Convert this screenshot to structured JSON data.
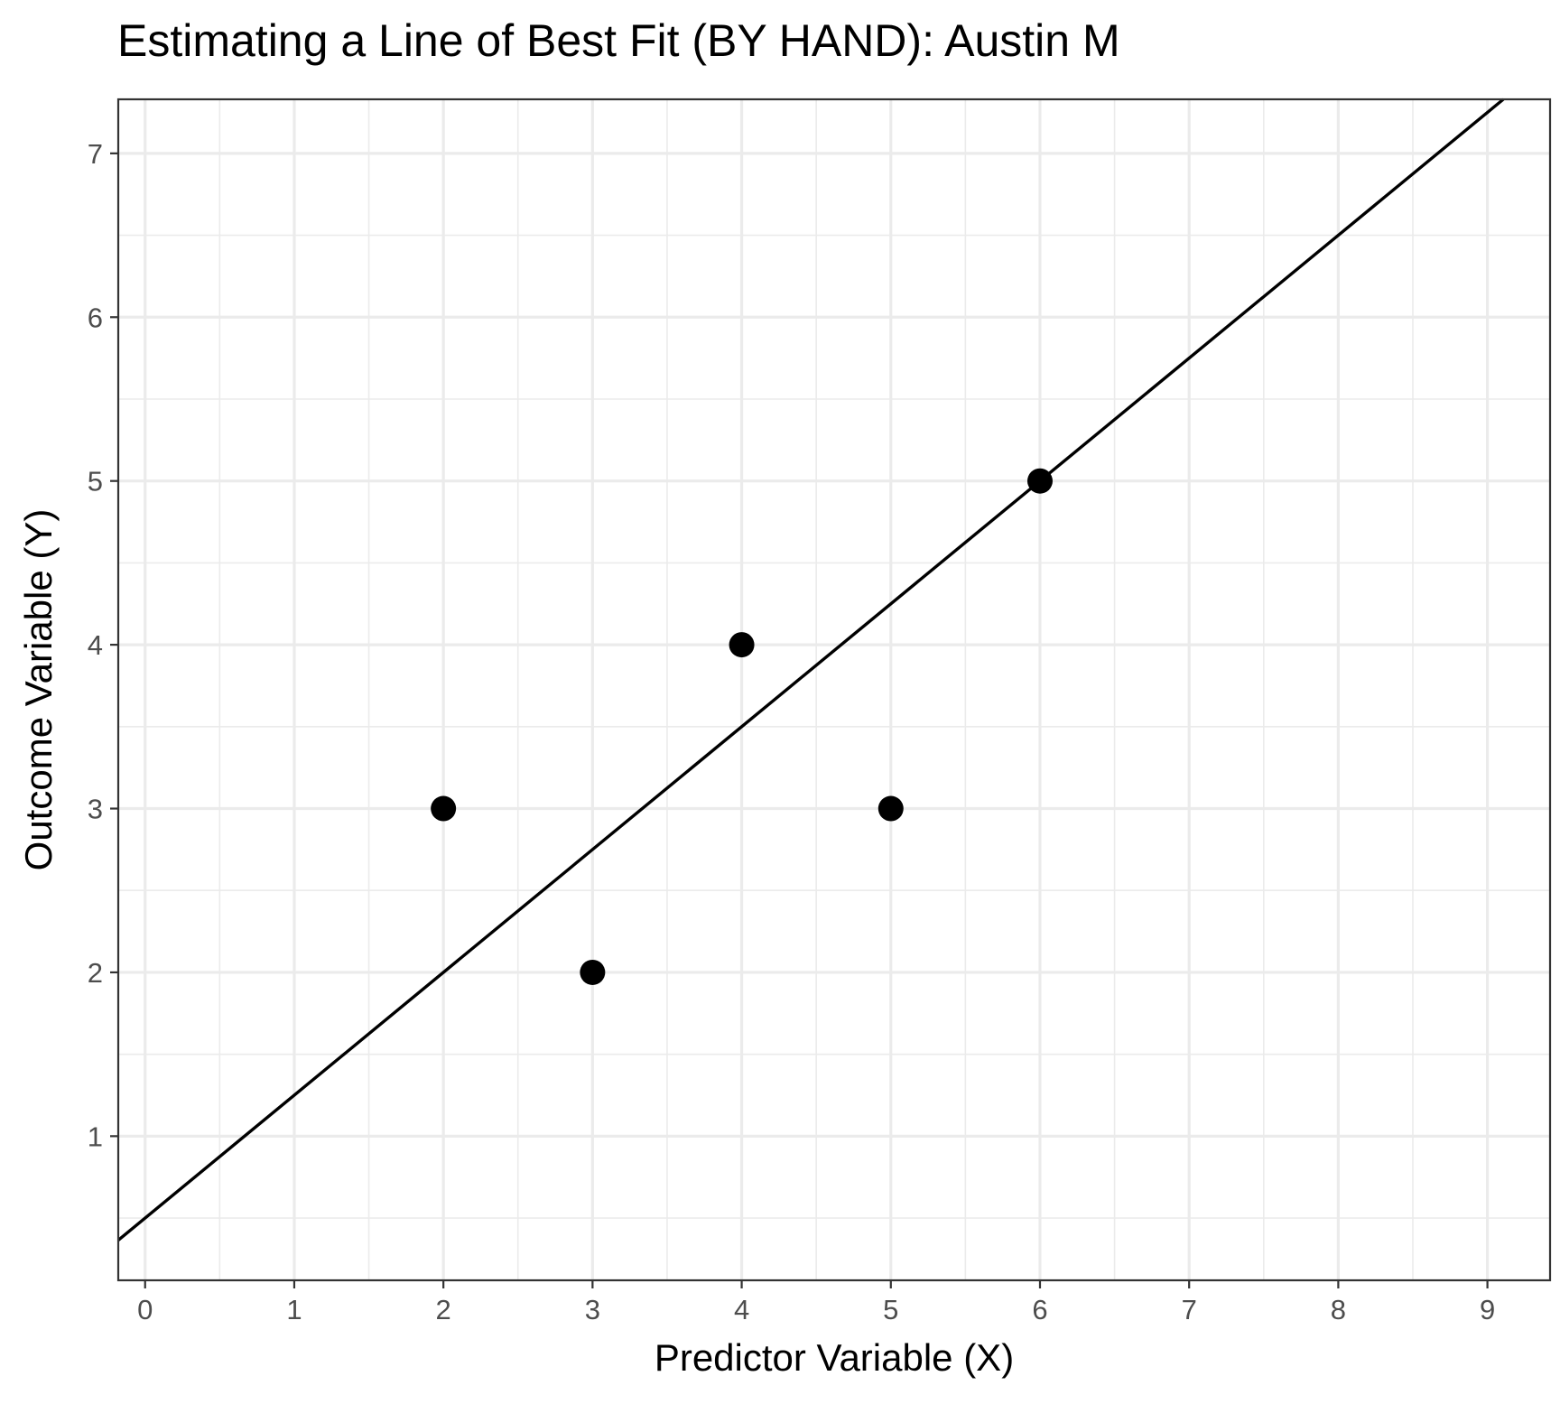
{
  "chart_data": {
    "type": "scatter",
    "title": "Estimating a Line of Best Fit (BY HAND): Austin M",
    "xlabel": "Predictor Variable (X)",
    "ylabel": "Outcome Variable (Y)",
    "xlim": [
      -0.18,
      9.42
    ],
    "ylim": [
      0.12,
      7.33
    ],
    "x_ticks": [
      0,
      1,
      2,
      3,
      4,
      5,
      6,
      7,
      8,
      9
    ],
    "y_ticks": [
      1,
      2,
      3,
      4,
      5,
      6,
      7
    ],
    "x_tick_labels": [
      "0",
      "1",
      "2",
      "3",
      "4",
      "5",
      "6",
      "7",
      "8",
      "9"
    ],
    "y_tick_labels": [
      "1",
      "2",
      "3",
      "4",
      "5",
      "6",
      "7"
    ],
    "grid": true,
    "points": [
      {
        "x": 2,
        "y": 3
      },
      {
        "x": 3,
        "y": 2
      },
      {
        "x": 4,
        "y": 4
      },
      {
        "x": 5,
        "y": 3
      },
      {
        "x": 6,
        "y": 5
      }
    ],
    "fit_line": {
      "intercept": 0.5,
      "slope": 0.75
    },
    "colors": {
      "points": "#000000",
      "line": "#000000",
      "grid": "#ebebeb",
      "border": "#333333",
      "tick_labels": "#4d4d4d"
    }
  }
}
